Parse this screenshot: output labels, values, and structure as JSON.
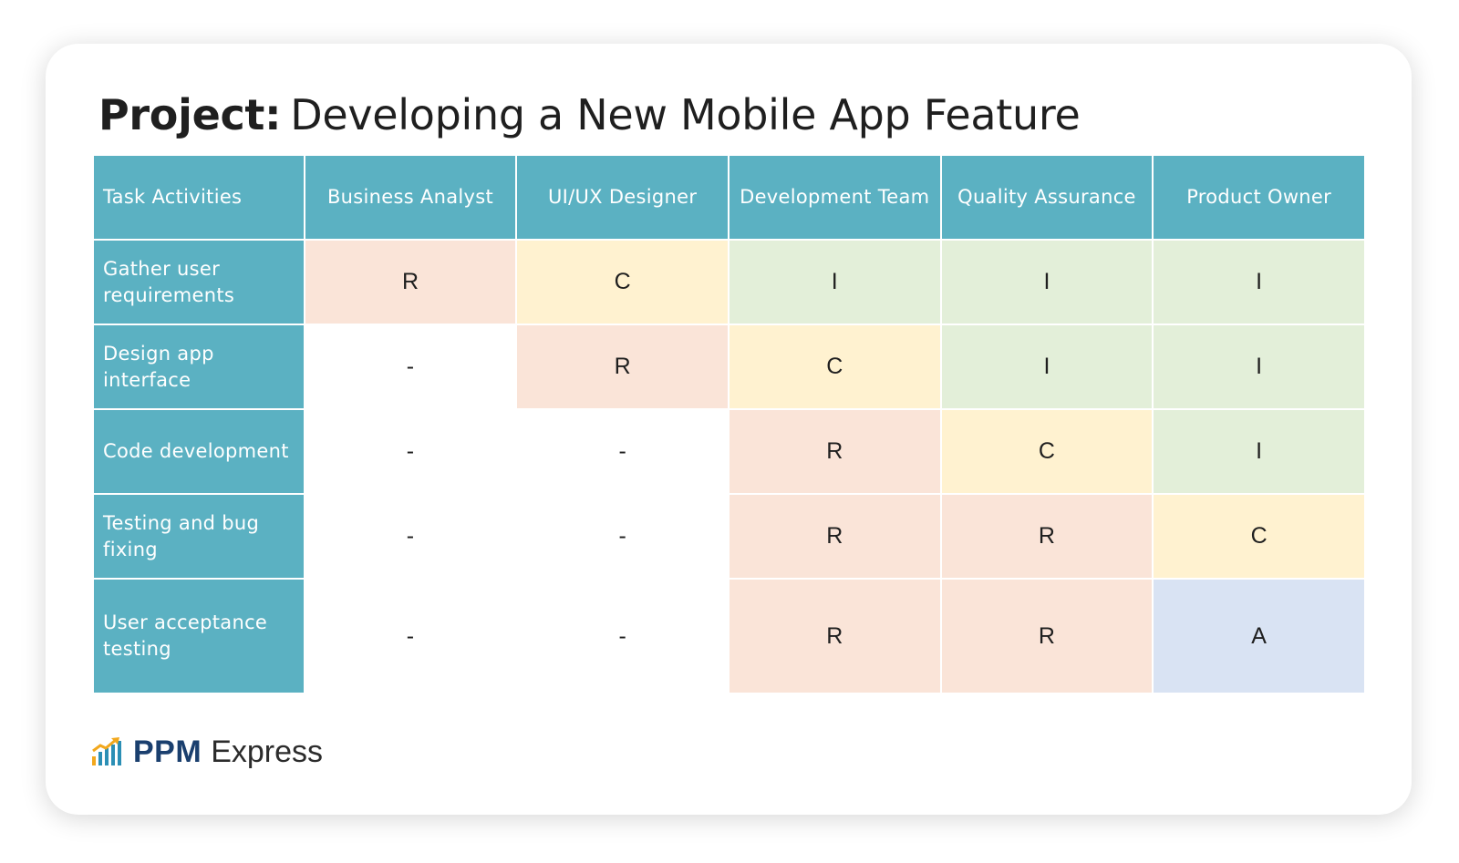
{
  "title": {
    "label": "Project:",
    "text": "Developing a New Mobile App Feature"
  },
  "table": {
    "headers": [
      "Task Activities",
      "Business Analyst",
      "UI/UX Designer",
      "Development Team",
      "Quality Assurance",
      "Product Owner"
    ],
    "rows": [
      {
        "task": "Gather user requirements",
        "values": [
          "R",
          "C",
          "I",
          "I",
          "I"
        ]
      },
      {
        "task": "Design app interface",
        "values": [
          "-",
          "R",
          "C",
          "I",
          "I"
        ]
      },
      {
        "task": "Code development",
        "values": [
          "-",
          "-",
          "R",
          "C",
          "I"
        ]
      },
      {
        "task": "Testing and bug fixing",
        "values": [
          "-",
          "-",
          "R",
          "R",
          "C"
        ]
      },
      {
        "task": "User acceptance testing",
        "values": [
          "-",
          "-",
          "R",
          "R",
          "A"
        ]
      }
    ]
  },
  "colors": {
    "header_bg": "#5bb1c2",
    "R": "#fae4d8",
    "C": "#fff2d0",
    "I": "#e3efd9",
    "A": "#d9e3f3"
  },
  "logo": {
    "brand": "PPM",
    "product": "Express",
    "icon": "bar-chart-arrow-icon"
  }
}
